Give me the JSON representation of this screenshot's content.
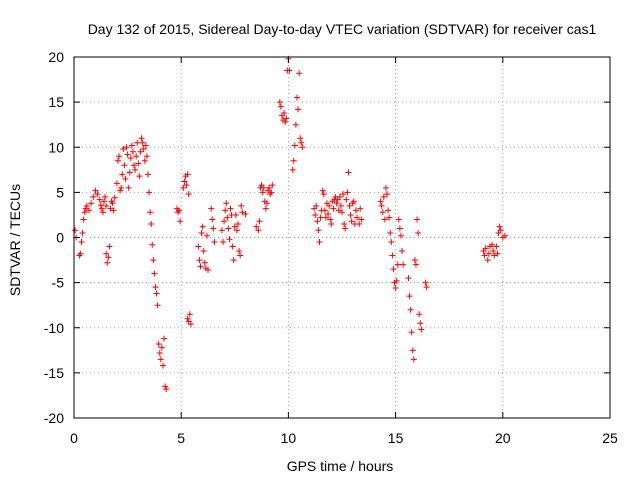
{
  "chart_data": {
    "type": "scatter",
    "title": "Day 132 of 2015, Sidereal Day-to-day VTEC variation (SDTVAR) for receiver cas1",
    "xlabel": "GPS time / hours",
    "ylabel": "SDTVAR / TECUs",
    "xlim": [
      0,
      25
    ],
    "ylim": [
      -20,
      20
    ],
    "xticks": [
      0,
      5,
      10,
      15,
      20,
      25
    ],
    "yticks": [
      -20,
      -15,
      -10,
      -5,
      0,
      5,
      10,
      15,
      20
    ],
    "grid": true,
    "marker": "plus",
    "color": "#ff0000",
    "series": [
      {
        "name": "cas1",
        "points": [
          [
            0.05,
            0.8
          ],
          [
            0.1,
            0.0
          ],
          [
            0.25,
            -2.0
          ],
          [
            0.3,
            -1.8
          ],
          [
            0.35,
            -0.5
          ],
          [
            0.4,
            0.5
          ],
          [
            0.45,
            2.0
          ],
          [
            0.5,
            2.8
          ],
          [
            0.55,
            3.2
          ],
          [
            0.6,
            3.5
          ],
          [
            0.7,
            3.0
          ],
          [
            0.8,
            3.8
          ],
          [
            0.9,
            4.5
          ],
          [
            1.0,
            5.2
          ],
          [
            1.1,
            4.8
          ],
          [
            1.2,
            4.2
          ],
          [
            1.25,
            3.6
          ],
          [
            1.3,
            3.2
          ],
          [
            1.35,
            2.8
          ],
          [
            1.4,
            4.0
          ],
          [
            1.45,
            4.5
          ],
          [
            1.5,
            3.5
          ],
          [
            1.5,
            -1.8
          ],
          [
            1.55,
            -2.8
          ],
          [
            1.6,
            -2.2
          ],
          [
            1.65,
            -1.0
          ],
          [
            1.7,
            3.2
          ],
          [
            1.75,
            4.0
          ],
          [
            1.8,
            3.8
          ],
          [
            1.85,
            3.0
          ],
          [
            1.9,
            4.4
          ],
          [
            2.0,
            6.0
          ],
          [
            2.05,
            8.5
          ],
          [
            2.1,
            9.0
          ],
          [
            2.15,
            5.2
          ],
          [
            2.2,
            5.5
          ],
          [
            2.25,
            7.0
          ],
          [
            2.3,
            9.8
          ],
          [
            2.35,
            8.0
          ],
          [
            2.4,
            6.5
          ],
          [
            2.45,
            10.0
          ],
          [
            2.5,
            9.2
          ],
          [
            2.55,
            5.5
          ],
          [
            2.6,
            7.2
          ],
          [
            2.65,
            8.8
          ],
          [
            2.7,
            10.2
          ],
          [
            2.75,
            9.5
          ],
          [
            2.8,
            8.0
          ],
          [
            2.85,
            7.5
          ],
          [
            2.9,
            9.0
          ],
          [
            2.95,
            10.5
          ],
          [
            3.0,
            8.2
          ],
          [
            3.05,
            6.8
          ],
          [
            3.1,
            9.5
          ],
          [
            3.15,
            11.0
          ],
          [
            3.2,
            10.5
          ],
          [
            3.25,
            9.8
          ],
          [
            3.3,
            8.5
          ],
          [
            3.35,
            10.2
          ],
          [
            3.4,
            9.0
          ],
          [
            3.45,
            7.0
          ],
          [
            3.5,
            5.0
          ],
          [
            3.55,
            2.8
          ],
          [
            3.6,
            1.5
          ],
          [
            3.65,
            -0.8
          ],
          [
            3.7,
            -2.5
          ],
          [
            3.75,
            -4.0
          ],
          [
            3.8,
            -5.5
          ],
          [
            3.85,
            -6.2
          ],
          [
            3.9,
            -7.5
          ],
          [
            3.95,
            -11.8
          ],
          [
            4.0,
            -12.8
          ],
          [
            4.05,
            -13.5
          ],
          [
            4.1,
            -12.2
          ],
          [
            4.15,
            -14.2
          ],
          [
            4.2,
            -11.2
          ],
          [
            4.25,
            -16.5
          ],
          [
            4.3,
            -16.8
          ],
          [
            4.8,
            3.2
          ],
          [
            4.85,
            2.8
          ],
          [
            4.9,
            3.0
          ],
          [
            4.95,
            1.8
          ],
          [
            5.1,
            5.5
          ],
          [
            5.15,
            6.2
          ],
          [
            5.2,
            6.8
          ],
          [
            5.25,
            5.8
          ],
          [
            5.3,
            7.0
          ],
          [
            5.35,
            4.8
          ],
          [
            5.3,
            -9.0
          ],
          [
            5.35,
            -9.3
          ],
          [
            5.4,
            -8.5
          ],
          [
            5.45,
            -9.6
          ],
          [
            5.8,
            -1.0
          ],
          [
            5.85,
            -2.5
          ],
          [
            5.9,
            -3.2
          ],
          [
            5.95,
            0.5
          ],
          [
            6.0,
            1.2
          ],
          [
            6.05,
            -1.5
          ],
          [
            6.1,
            -2.8
          ],
          [
            6.15,
            -3.4
          ],
          [
            6.2,
            0.2
          ],
          [
            6.25,
            -3.6
          ],
          [
            6.4,
            3.2
          ],
          [
            6.45,
            2.0
          ],
          [
            6.5,
            1.0
          ],
          [
            6.55,
            -0.5
          ],
          [
            6.9,
            0.8
          ],
          [
            6.95,
            -0.5
          ],
          [
            7.0,
            1.8
          ],
          [
            7.05,
            3.0
          ],
          [
            7.1,
            3.8
          ],
          [
            7.15,
            2.2
          ],
          [
            7.2,
            1.0
          ],
          [
            7.25,
            -0.2
          ],
          [
            7.3,
            3.2
          ],
          [
            7.35,
            2.5
          ],
          [
            7.4,
            -1.0
          ],
          [
            7.45,
            -2.5
          ],
          [
            7.5,
            1.2
          ],
          [
            7.55,
            2.5
          ],
          [
            7.6,
            0.8
          ],
          [
            7.65,
            1.5
          ],
          [
            7.7,
            -1.5
          ],
          [
            7.75,
            -2.0
          ],
          [
            7.8,
            3.5
          ],
          [
            7.85,
            2.8
          ],
          [
            8.0,
            2.6
          ],
          [
            8.5,
            1.2
          ],
          [
            8.6,
            0.8
          ],
          [
            8.65,
            1.8
          ],
          [
            8.7,
            5.5
          ],
          [
            8.75,
            5.8
          ],
          [
            8.8,
            5.0
          ],
          [
            8.85,
            5.5
          ],
          [
            8.9,
            4.0
          ],
          [
            8.95,
            3.2
          ],
          [
            9.0,
            3.8
          ],
          [
            9.05,
            5.2
          ],
          [
            9.1,
            5.5
          ],
          [
            9.15,
            4.8
          ],
          [
            9.2,
            5.0
          ],
          [
            9.25,
            5.8
          ],
          [
            9.6,
            15.0
          ],
          [
            9.65,
            14.5
          ],
          [
            9.7,
            13.5
          ],
          [
            9.75,
            13.0
          ],
          [
            9.8,
            13.8
          ],
          [
            9.85,
            12.8
          ],
          [
            9.9,
            13.2
          ],
          [
            9.95,
            18.5
          ],
          [
            10.0,
            19.8
          ],
          [
            10.05,
            18.5
          ],
          [
            10.2,
            7.5
          ],
          [
            10.25,
            8.5
          ],
          [
            10.3,
            10.2
          ],
          [
            10.35,
            12.5
          ],
          [
            10.4,
            15.5
          ],
          [
            10.45,
            14.2
          ],
          [
            10.5,
            18.2
          ],
          [
            10.55,
            11.0
          ],
          [
            10.6,
            10.5
          ],
          [
            10.65,
            10.0
          ],
          [
            11.2,
            3.2
          ],
          [
            11.25,
            2.5
          ],
          [
            11.3,
            3.5
          ],
          [
            11.35,
            1.8
          ],
          [
            11.4,
            0.8
          ],
          [
            11.45,
            -0.5
          ],
          [
            11.5,
            2.2
          ],
          [
            11.55,
            3.0
          ],
          [
            11.6,
            5.2
          ],
          [
            11.65,
            4.8
          ],
          [
            11.7,
            3.0
          ],
          [
            11.75,
            2.2
          ],
          [
            11.8,
            3.8
          ],
          [
            11.85,
            2.6
          ],
          [
            11.9,
            3.5
          ],
          [
            11.95,
            2.0
          ],
          [
            12.0,
            1.5
          ],
          [
            12.05,
            4.0
          ],
          [
            12.1,
            3.2
          ],
          [
            12.15,
            4.2
          ],
          [
            12.2,
            4.5
          ],
          [
            12.25,
            3.8
          ],
          [
            12.3,
            4.2
          ],
          [
            12.35,
            3.0
          ],
          [
            12.4,
            4.5
          ],
          [
            12.45,
            3.5
          ],
          [
            12.5,
            2.8
          ],
          [
            12.55,
            4.8
          ],
          [
            12.6,
            1.5
          ],
          [
            12.65,
            1.0
          ],
          [
            12.7,
            4.2
          ],
          [
            12.75,
            5.0
          ],
          [
            12.8,
            7.2
          ],
          [
            12.85,
            3.5
          ],
          [
            12.9,
            2.5
          ],
          [
            12.95,
            1.8
          ],
          [
            13.0,
            3.8
          ],
          [
            13.05,
            4.0
          ],
          [
            13.1,
            1.5
          ],
          [
            13.15,
            3.0
          ],
          [
            13.2,
            2.2
          ],
          [
            13.3,
            1.5
          ],
          [
            13.35,
            3.2
          ],
          [
            13.4,
            2.0
          ],
          [
            14.3,
            4.0
          ],
          [
            14.35,
            3.5
          ],
          [
            14.4,
            2.8
          ],
          [
            14.45,
            4.5
          ],
          [
            14.5,
            2.0
          ],
          [
            14.55,
            5.5
          ],
          [
            14.6,
            4.8
          ],
          [
            14.65,
            3.0
          ],
          [
            14.7,
            2.2
          ],
          [
            14.75,
            0.5
          ],
          [
            14.8,
            -0.5
          ],
          [
            14.85,
            -2.0
          ],
          [
            14.9,
            -3.5
          ],
          [
            14.95,
            -5.0
          ],
          [
            15.0,
            -5.6
          ],
          [
            15.05,
            -4.8
          ],
          [
            15.1,
            -3.0
          ],
          [
            15.15,
            2.0
          ],
          [
            15.2,
            1.0
          ],
          [
            15.25,
            0.2
          ],
          [
            15.3,
            -1.5
          ],
          [
            15.35,
            -3.0
          ],
          [
            15.6,
            -4.5
          ],
          [
            15.65,
            -6.5
          ],
          [
            15.7,
            -8.0
          ],
          [
            15.75,
            -10.5
          ],
          [
            15.8,
            -12.5
          ],
          [
            15.85,
            -13.5
          ],
          [
            15.9,
            -2.5
          ],
          [
            15.95,
            -3.0
          ],
          [
            16.0,
            2.0
          ],
          [
            16.05,
            0.5
          ],
          [
            16.1,
            -8.5
          ],
          [
            16.15,
            -9.5
          ],
          [
            16.2,
            -10.2
          ],
          [
            16.4,
            -5.0
          ],
          [
            16.45,
            -5.5
          ],
          [
            19.1,
            -1.5
          ],
          [
            19.15,
            -2.0
          ],
          [
            19.2,
            -1.2
          ],
          [
            19.3,
            -2.5
          ],
          [
            19.35,
            -1.8
          ],
          [
            19.4,
            -1.0
          ],
          [
            19.5,
            -0.8
          ],
          [
            19.55,
            -1.5
          ],
          [
            19.6,
            -2.0
          ],
          [
            19.7,
            -1.0
          ],
          [
            19.75,
            -1.8
          ],
          [
            19.8,
            0.5
          ],
          [
            19.85,
            1.2
          ],
          [
            19.9,
            0.8
          ],
          [
            20.0,
            0.0
          ],
          [
            20.1,
            0.2
          ]
        ]
      }
    ]
  }
}
